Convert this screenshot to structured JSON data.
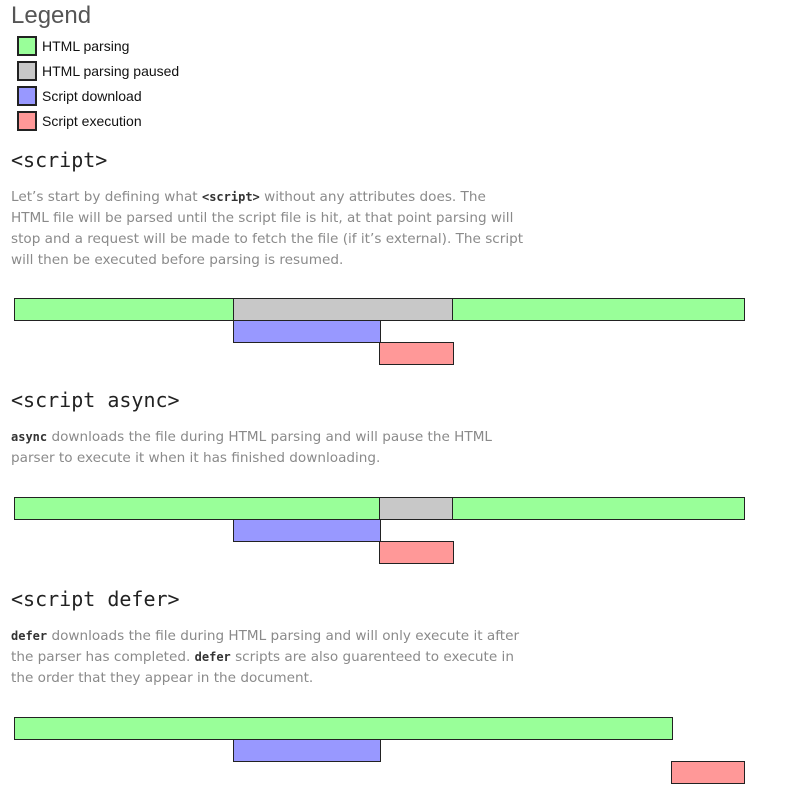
{
  "legend": {
    "title": "Legend",
    "items": [
      {
        "label": "HTML parsing",
        "color": "#99ff99"
      },
      {
        "label": "HTML parsing paused",
        "color": "#c8c8c8"
      },
      {
        "label": "Script download",
        "color": "#9898ff"
      },
      {
        "label": "Script execution",
        "color": "#ff9898"
      }
    ]
  },
  "sections": [
    {
      "heading": "<script>",
      "text_before": "Let’s start by defining what ",
      "code": "<script>",
      "text_after": " without any attributes does. The HTML file will be parsed until the script file is hit, at that point parsing will stop and a request will be made to fetch the file (if it’s external). The script will then be executed before parsing is resumed."
    },
    {
      "heading": "<script async>",
      "code": "async",
      "text_after": " downloads the file during HTML parsing and will pause the HTML parser to execute it when it has finished downloading."
    },
    {
      "heading": "<script defer>",
      "code": "defer",
      "text_mid": " downloads the file during HTML parsing and will only execute it after the parser has completed. ",
      "code2": "defer",
      "text_after": " scripts are also guarenteed to execute in the order that they appear in the document."
    }
  ]
}
